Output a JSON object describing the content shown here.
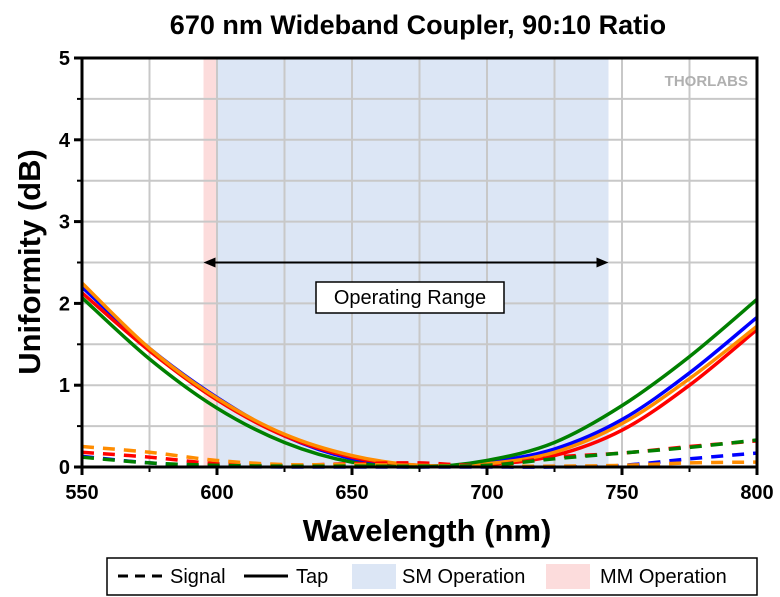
{
  "chart_data": {
    "type": "line",
    "title": "670 nm Wideband Coupler, 90:10 Ratio",
    "xlabel": "Wavelength (nm)",
    "ylabel": "Uniformity (dB)",
    "xlim": [
      550,
      800
    ],
    "ylim": [
      0,
      5
    ],
    "xticks": [
      "550",
      "600",
      "650",
      "700",
      "750",
      "800"
    ],
    "yticks": [
      "0",
      "1",
      "2",
      "3",
      "4",
      "5"
    ],
    "grid": true,
    "x": [
      550,
      575,
      600,
      625,
      650,
      675,
      700,
      725,
      750,
      775,
      800
    ],
    "series": [
      {
        "name": "Tap blue",
        "style": "solid",
        "color": "#0000ff",
        "values": [
          2.2,
          1.45,
          0.85,
          0.38,
          0.1,
          0.01,
          0.06,
          0.22,
          0.58,
          1.15,
          1.83
        ]
      },
      {
        "name": "Tap red",
        "style": "solid",
        "color": "#ff0000",
        "values": [
          2.13,
          1.42,
          0.82,
          0.38,
          0.12,
          0.02,
          0.03,
          0.14,
          0.45,
          1.0,
          1.68
        ]
      },
      {
        "name": "Tap orange",
        "style": "solid",
        "color": "#ff8c00",
        "values": [
          2.25,
          1.45,
          0.84,
          0.4,
          0.14,
          0.02,
          0.04,
          0.18,
          0.53,
          1.08,
          1.72
        ]
      },
      {
        "name": "Tap green",
        "style": "solid",
        "color": "#008000",
        "values": [
          2.07,
          1.32,
          0.72,
          0.3,
          0.06,
          0.0,
          0.08,
          0.3,
          0.75,
          1.35,
          2.05
        ]
      },
      {
        "name": "Signal blue",
        "style": "dashed",
        "color": "#0000ff",
        "values": [
          0.13,
          0.05,
          0.01,
          0.0,
          0.0,
          0.0,
          0.0,
          0.0,
          0.02,
          0.1,
          0.17
        ]
      },
      {
        "name": "Signal red",
        "style": "dashed",
        "color": "#ff0000",
        "values": [
          0.18,
          0.12,
          0.04,
          0.02,
          0.04,
          0.05,
          0.02,
          0.12,
          0.17,
          0.25,
          0.32
        ]
      },
      {
        "name": "Signal orange",
        "style": "dashed",
        "color": "#ff8c00",
        "values": [
          0.25,
          0.18,
          0.08,
          0.03,
          0.03,
          0.02,
          0.01,
          0.01,
          0.02,
          0.05,
          0.06
        ]
      },
      {
        "name": "Signal green",
        "style": "dashed",
        "color": "#008000",
        "values": [
          0.12,
          0.05,
          0.02,
          0.01,
          0.01,
          0.01,
          0.02,
          0.1,
          0.17,
          0.24,
          0.33
        ]
      }
    ],
    "regions": [
      {
        "name": "MM Operation",
        "from": 595,
        "to": 600,
        "color": "#fcdcdc"
      },
      {
        "name": "SM Operation",
        "from": 600,
        "to": 745,
        "color": "#dce6f5"
      }
    ],
    "annotation": {
      "text": "Operating Range",
      "from": 595,
      "to": 745,
      "y": 2.5
    },
    "legend": {
      "placement": "bottom",
      "entries": [
        "Signal",
        "Tap",
        "SM Operation",
        "MM Operation"
      ]
    },
    "watermark": "THORLABS"
  }
}
